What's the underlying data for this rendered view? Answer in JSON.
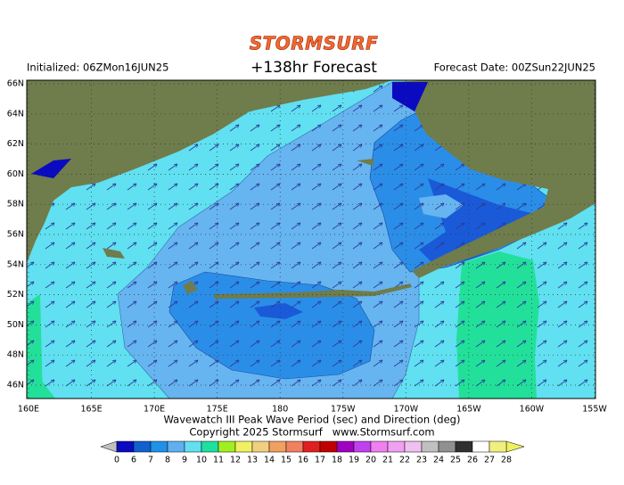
{
  "header": {
    "brand": "STORMSURF",
    "forecast": "+138hr Forecast",
    "initialized": "Initialized: 06ZMon16JUN25",
    "forecast_date": "Forecast Date: 00ZSun22JUN25"
  },
  "map": {
    "lat_labels": [
      "66N",
      "64N",
      "62N",
      "60N",
      "58N",
      "56N",
      "54N",
      "52N",
      "50N",
      "48N",
      "46N"
    ],
    "lon_labels": [
      "160E",
      "165E",
      "170E",
      "175E",
      "180",
      "175W",
      "170W",
      "165W",
      "160W",
      "155W"
    ]
  },
  "caption": {
    "line1": "Wavewatch III Peak Wave Period (sec) and Direction (deg)",
    "line2": "Copyright 2025 Stormsurf   www.Stormsurf.com"
  },
  "legend": {
    "labels": [
      0,
      6,
      7,
      8,
      9,
      10,
      11,
      12,
      13,
      14,
      15,
      16,
      17,
      18,
      19,
      20,
      21,
      22,
      23,
      24,
      25,
      26,
      27,
      28
    ],
    "colors": [
      "#0a0ac0",
      "#1060d0",
      "#2090e8",
      "#60b0f0",
      "#60e0f0",
      "#20e0a0",
      "#a0f020",
      "#f0f060",
      "#f0d080",
      "#f0a060",
      "#f08060",
      "#e02020",
      "#c00000",
      "#a000c0",
      "#c040f0",
      "#f080f0",
      "#f0a0f0",
      "#f0c0f0",
      "#c0c0c0",
      "#909090",
      "#303030",
      "#ffffff",
      "#f0f080"
    ]
  }
}
